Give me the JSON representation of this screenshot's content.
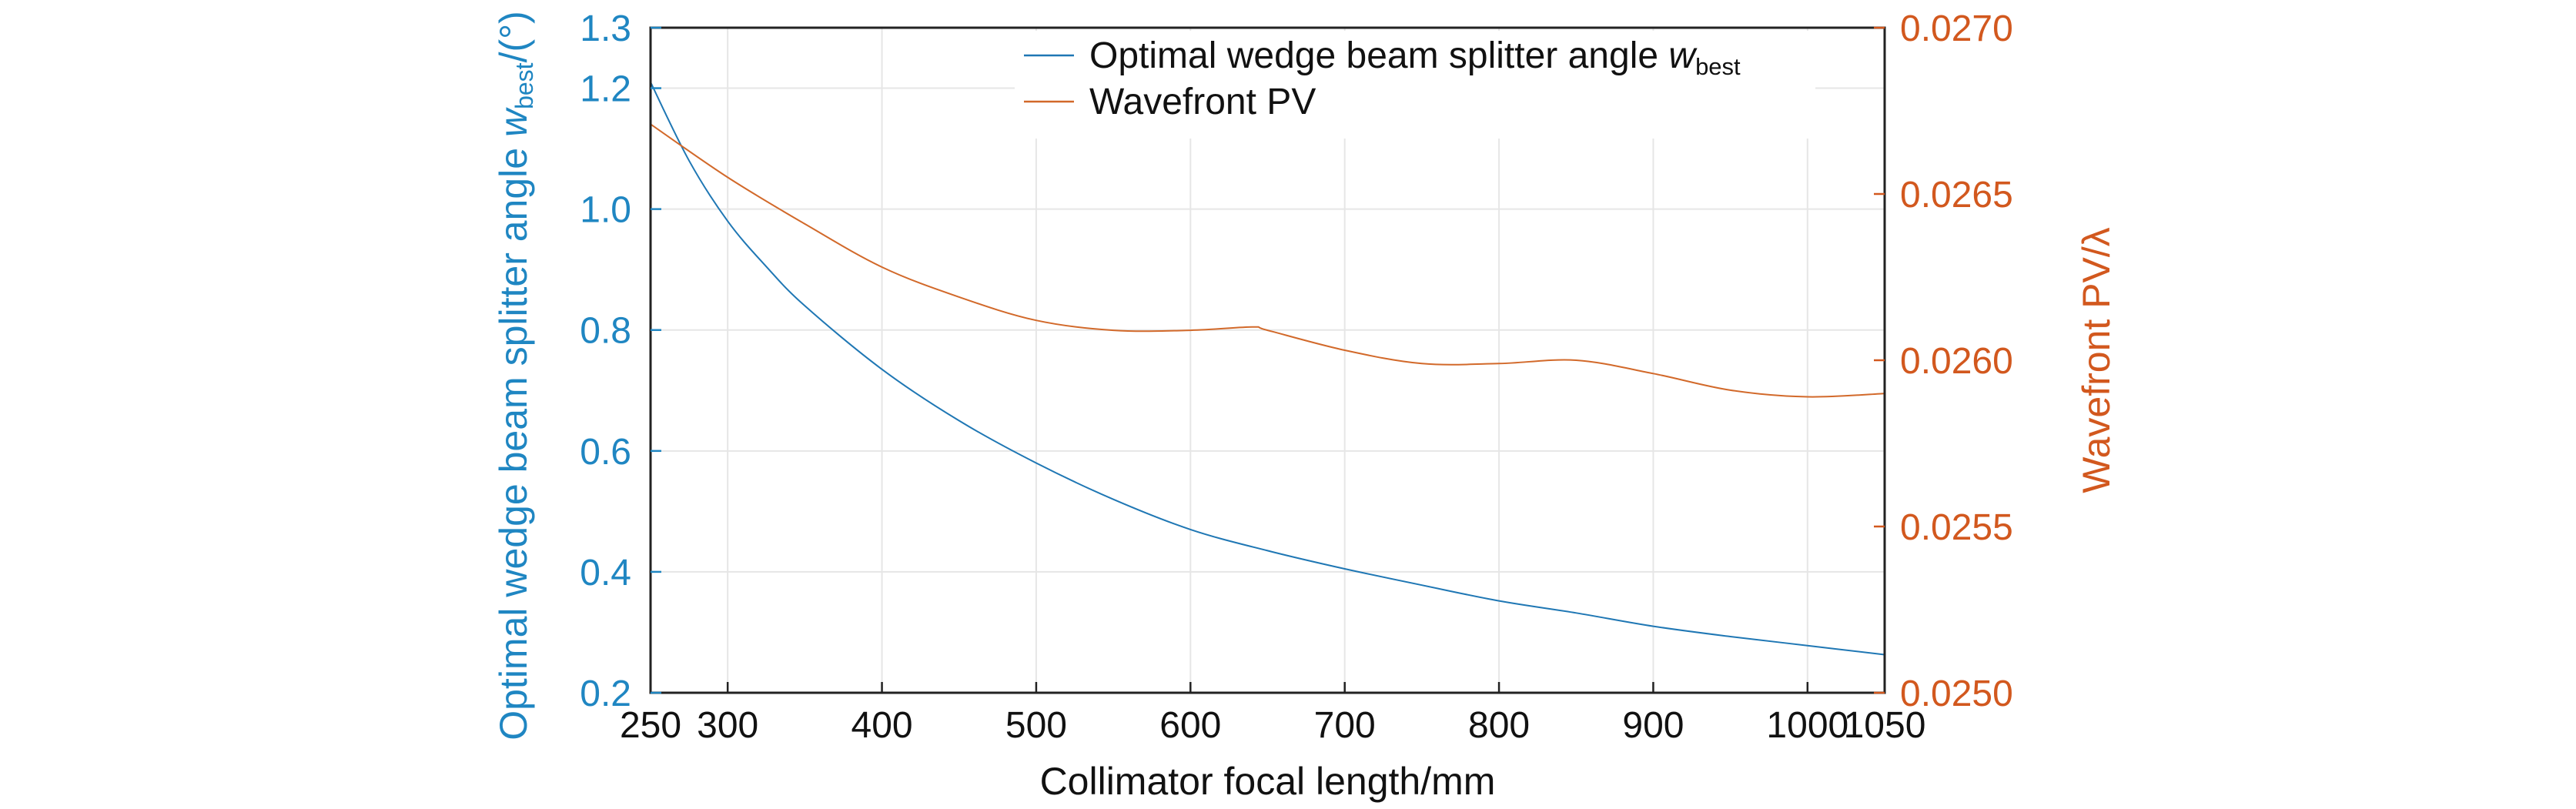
{
  "chart_data": {
    "type": "line",
    "xlabel": "Collimator focal length/mm",
    "ylabel_left": {
      "main": "Optimal wedge beam splitter angle ",
      "var": "w",
      "sub": "best",
      "tail": "/(°)"
    },
    "ylabel_right": "Wavefront PV/λ",
    "xlim": [
      250,
      1050
    ],
    "ylim_left": [
      0.2,
      1.3
    ],
    "ylim_right": [
      0.025,
      0.027
    ],
    "x_ticks": [
      250,
      300,
      400,
      500,
      600,
      700,
      800,
      900,
      1000,
      1050
    ],
    "x_tick_labels": [
      "250",
      "300",
      "400",
      "500",
      "600",
      "700",
      "800",
      "900",
      "1000",
      "1050"
    ],
    "y_left_ticks": [
      0.2,
      0.4,
      0.6,
      0.8,
      1.0,
      1.2,
      1.3
    ],
    "y_left_tick_labels": [
      "0.2",
      "0.4",
      "0.6",
      "0.8",
      "1.0",
      "1.2",
      "1.3"
    ],
    "y_right_ticks": [
      0.025,
      0.0255,
      0.026,
      0.0265,
      0.027
    ],
    "y_right_tick_labels": [
      "0.0250",
      "0.0255",
      "0.0260",
      "0.0265",
      "0.0270"
    ],
    "grid": true,
    "legend_position": "top-right",
    "series": [
      {
        "name": "Optimal wedge beam splitter angle w_best",
        "legend_label": {
          "main": "Optimal wedge beam splitter angle ",
          "var": "w",
          "sub": "best"
        },
        "axis": "left",
        "color": "#1f77b4",
        "x": [
          250,
          275,
          300,
          325,
          350,
          400,
          450,
          500,
          550,
          600,
          650,
          700,
          750,
          800,
          850,
          900,
          950,
          1000,
          1050
        ],
        "y": [
          1.21,
          1.08,
          0.98,
          0.905,
          0.84,
          0.735,
          0.65,
          0.58,
          0.52,
          0.47,
          0.435,
          0.405,
          0.378,
          0.352,
          0.332,
          0.31,
          0.293,
          0.278,
          0.263
        ]
      },
      {
        "name": "Wavefront PV",
        "legend_label": {
          "main": "Wavefront PV",
          "var": "",
          "sub": ""
        },
        "axis": "right",
        "color": "#d2692a",
        "x": [
          250,
          300,
          350,
          400,
          450,
          500,
          550,
          600,
          640,
          650,
          700,
          750,
          800,
          850,
          900,
          950,
          1000,
          1050
        ],
        "y": [
          0.02671,
          0.02655,
          0.02641,
          0.02628,
          0.02619,
          0.02612,
          0.02609,
          0.02609,
          0.0261,
          0.02609,
          0.02603,
          0.02599,
          0.02599,
          0.026,
          0.02596,
          0.02591,
          0.02589,
          0.0259
        ]
      }
    ]
  }
}
